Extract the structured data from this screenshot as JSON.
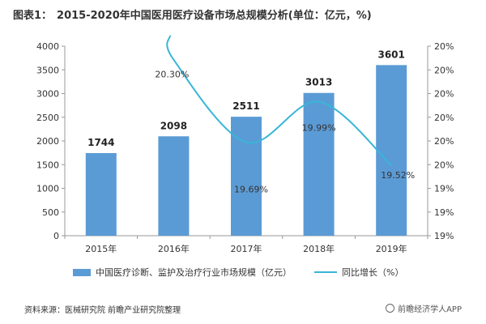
{
  "header": {
    "label": "图表1：",
    "title": "2015-2020年中国医用医疗设备市场总规模分析(单位：亿元，%)"
  },
  "chart_data": {
    "type": "bar",
    "categories": [
      "2015年",
      "2016年",
      "2017年",
      "2018年",
      "2019年"
    ],
    "series": [
      {
        "name": "中国医疗诊断、监护及治疗行业市场规模（亿元）",
        "type": "bar",
        "axis": "left",
        "values": [
          1744,
          2098,
          2511,
          3013,
          3601
        ]
      },
      {
        "name": "同比增长（%）",
        "type": "line",
        "axis": "right",
        "values": [
          null,
          20.3,
          19.69,
          19.99,
          19.52
        ]
      }
    ],
    "bar_labels": [
      "1744",
      "2098",
      "2511",
      "3013",
      "3601"
    ],
    "line_labels": [
      "",
      "20.30%",
      "19.69%",
      "19.99%",
      "19.52%"
    ],
    "left_axis": {
      "ylim": [
        0,
        4000
      ],
      "ticks": [
        "0",
        "500",
        "1000",
        "1500",
        "2000",
        "2500",
        "3000",
        "3500",
        "4000"
      ]
    },
    "right_axis": {
      "ylim": [
        19.0,
        20.4
      ],
      "ticks": [
        "19%",
        "19%",
        "19%",
        "20%",
        "20%",
        "20%",
        "20%",
        "20%",
        "20%"
      ]
    },
    "legend_position": "bottom",
    "colors": {
      "bar": "#5b9bd5",
      "line": "#38b6d6"
    }
  },
  "footer": {
    "source": "资料来源：医械研究院 前瞻产业研究院整理",
    "brand": "前瞻经济学人APP"
  }
}
